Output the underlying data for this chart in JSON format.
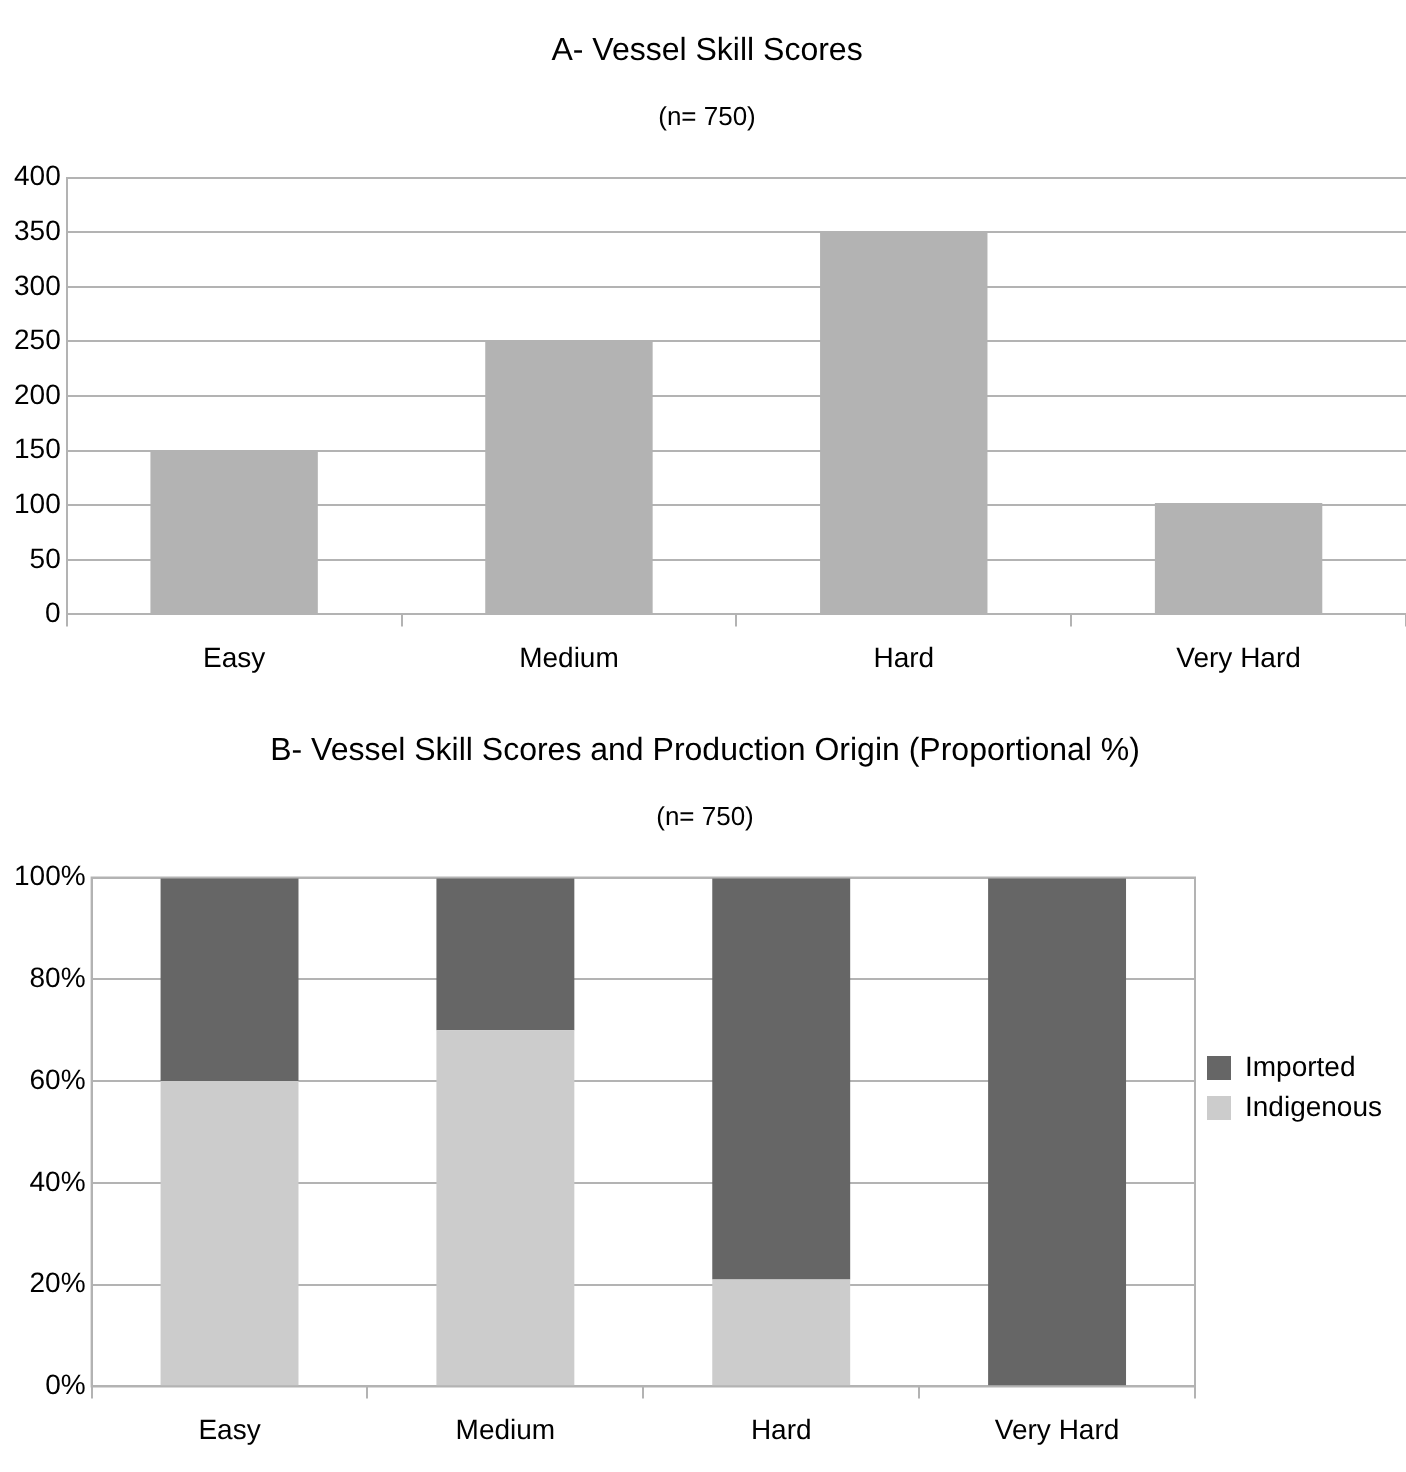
{
  "chart_data": [
    {
      "type": "bar",
      "title": "A- Vessel Skill Scores",
      "subtitle": "(n= 750)",
      "categories": [
        "Easy",
        "Medium",
        "Hard",
        "Very Hard"
      ],
      "values": [
        150,
        250,
        350,
        102
      ],
      "color": "#b3b3b3",
      "ylim": [
        0,
        400
      ],
      "yticks": [
        0,
        50,
        100,
        150,
        200,
        250,
        300,
        350,
        400
      ],
      "grid": "y",
      "legend": false
    },
    {
      "type": "bar",
      "title": "B- Vessel Skill Scores and Production Origin (Proportional %)",
      "subtitle": "(n= 750)",
      "categories": [
        "Easy",
        "Medium",
        "Hard",
        "Very Hard"
      ],
      "stacked": true,
      "series": [
        {
          "name": "Indigenous",
          "color": "#cccccc",
          "values": [
            60,
            70,
            21,
            0
          ]
        },
        {
          "name": "Imported",
          "color": "#666666",
          "values": [
            40,
            30,
            79,
            100
          ]
        }
      ],
      "ylim": [
        0,
        100
      ],
      "yticks": [
        {
          "value": 0,
          "label": "0%"
        },
        {
          "value": 20,
          "label": "20%"
        },
        {
          "value": 40,
          "label": "40%"
        },
        {
          "value": 60,
          "label": "60%"
        },
        {
          "value": 80,
          "label": "80%"
        },
        {
          "value": 100,
          "label": "100%"
        }
      ],
      "grid": "y",
      "legend": "right"
    }
  ]
}
